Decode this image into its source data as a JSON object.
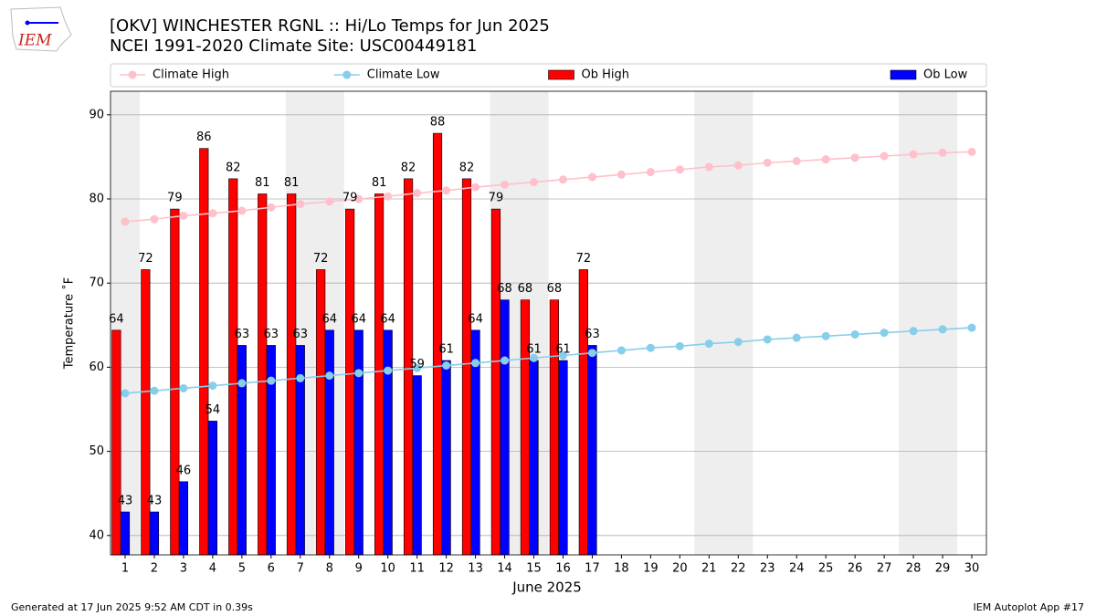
{
  "chart_data": {
    "type": "bar",
    "title": "[OKV] WINCHESTER RGNL :: Hi/Lo Temps for Jun 2025",
    "subtitle": "NCEI 1991-2020 Climate Site: USC00449181",
    "x_label": "June 2025",
    "y_label": "Temperature ˚F",
    "x": [
      1,
      2,
      3,
      4,
      5,
      6,
      7,
      8,
      9,
      10,
      11,
      12,
      13,
      14,
      15,
      16,
      17,
      18,
      19,
      20,
      21,
      22,
      23,
      24,
      25,
      26,
      27,
      28,
      29,
      30
    ],
    "xlim": [
      0.5,
      30.5
    ],
    "ylim": [
      37.7,
      92.8
    ],
    "yticks": [
      40,
      50,
      60,
      70,
      80,
      90
    ],
    "grid": true,
    "legend": "top",
    "shaded_x": [
      1,
      7,
      8,
      14,
      15,
      21,
      22,
      28,
      29
    ],
    "series": [
      {
        "name": "Climate High",
        "type": "line",
        "color": "#ffc0cb",
        "values": [
          77.3,
          77.6,
          78.0,
          78.3,
          78.6,
          79.0,
          79.4,
          79.7,
          80.0,
          80.3,
          80.7,
          81.0,
          81.4,
          81.7,
          82.0,
          82.3,
          82.6,
          82.9,
          83.2,
          83.5,
          83.8,
          84.0,
          84.3,
          84.5,
          84.7,
          84.9,
          85.1,
          85.3,
          85.5,
          85.6
        ]
      },
      {
        "name": "Climate Low",
        "type": "line",
        "color": "#87ceeb",
        "values": [
          56.9,
          57.2,
          57.5,
          57.8,
          58.1,
          58.4,
          58.7,
          59.0,
          59.3,
          59.6,
          59.9,
          60.2,
          60.5,
          60.8,
          61.1,
          61.4,
          61.7,
          62.0,
          62.3,
          62.5,
          62.8,
          63.0,
          63.3,
          63.5,
          63.7,
          63.9,
          64.1,
          64.3,
          64.5,
          64.7
        ]
      },
      {
        "name": "Ob High",
        "type": "bar",
        "color": "#ff0000",
        "values": [
          64.4,
          71.6,
          78.8,
          86,
          82.4,
          80.6,
          80.6,
          71.6,
          78.8,
          80.6,
          82.4,
          87.8,
          82.4,
          78.8,
          68,
          68,
          71.6,
          null,
          null,
          null,
          null,
          null,
          null,
          null,
          null,
          null,
          null,
          null,
          null,
          null
        ],
        "value_labels": [
          "64",
          "72",
          "79",
          "86",
          "82",
          "81",
          "81",
          "72",
          "79",
          "81",
          "82",
          "88",
          "82",
          "79",
          "68",
          "68",
          "72",
          null,
          null,
          null,
          null,
          null,
          null,
          null,
          null,
          null,
          null,
          null,
          null,
          null
        ]
      },
      {
        "name": "Ob Low",
        "type": "bar",
        "color": "#0000ff",
        "values": [
          42.8,
          42.8,
          46.4,
          53.6,
          62.6,
          62.6,
          62.6,
          64.4,
          64.4,
          64.4,
          59,
          60.8,
          64.4,
          68,
          60.8,
          60.8,
          62.6,
          null,
          null,
          null,
          null,
          null,
          null,
          null,
          null,
          null,
          null,
          null,
          null,
          null
        ],
        "value_labels": [
          "43",
          "43",
          "46",
          "54",
          "63",
          "63",
          "63",
          "64",
          "64",
          "64",
          "59",
          "61",
          "64",
          "68",
          "61",
          "61",
          "63",
          null,
          null,
          null,
          null,
          null,
          null,
          null,
          null,
          null,
          null,
          null,
          null,
          null
        ]
      }
    ]
  },
  "logo": {
    "text": "IEM"
  },
  "footer": {
    "left": "Generated at 17 Jun 2025 9:52 AM CDT in 0.39s",
    "right": "IEM Autoplot App #17"
  }
}
